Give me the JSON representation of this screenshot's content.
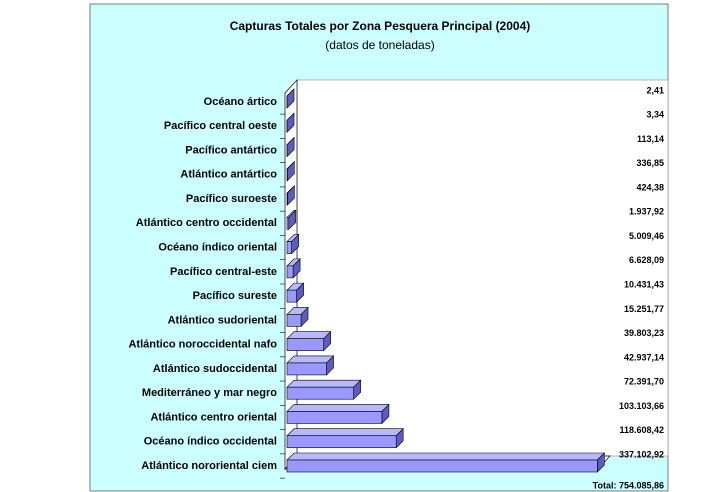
{
  "chart_data": {
    "type": "bar3d_horizontal",
    "title": "Capturas Totales por Zona Pesquera Principal (2004)",
    "subtitle": "(datos de toneladas)",
    "categories": [
      "Océano ártico",
      "Pacífico central oeste",
      "Pacífico antártico",
      "Atlántico antártico",
      "Pacífico suroeste",
      "Atlántico centro occidental",
      "Océano índico oriental",
      "Pacífico central-este",
      "Pacífico sureste",
      "Atlántico sudoriental",
      "Atlántico noroccidental nafo",
      "Atlántico sudoccidental",
      "Mediterráneo y mar negro",
      "Atlántico centro oriental",
      "Océano índico occidental",
      "Atlántico nororiental ciem"
    ],
    "values": [
      2.41,
      3.34,
      113.14,
      336.85,
      424.38,
      1937.92,
      5009.46,
      6628.09,
      10431.43,
      15251.77,
      39803.23,
      42937.14,
      72391.7,
      103103.66,
      118608.42,
      337102.92
    ],
    "value_labels": [
      "2,41",
      "3,34",
      "113,14",
      "336,85",
      "424,38",
      "1.937,92",
      "5.009,46",
      "6.628,09",
      "10.431,43",
      "15.251,77",
      "39.803,23",
      "42.937,14",
      "72.391,70",
      "103.103,66",
      "118.608,42",
      "337.102,92"
    ],
    "total_label": "Total: 754.085,86",
    "color": "#9999ff",
    "xlim": [
      0,
      340000
    ]
  }
}
